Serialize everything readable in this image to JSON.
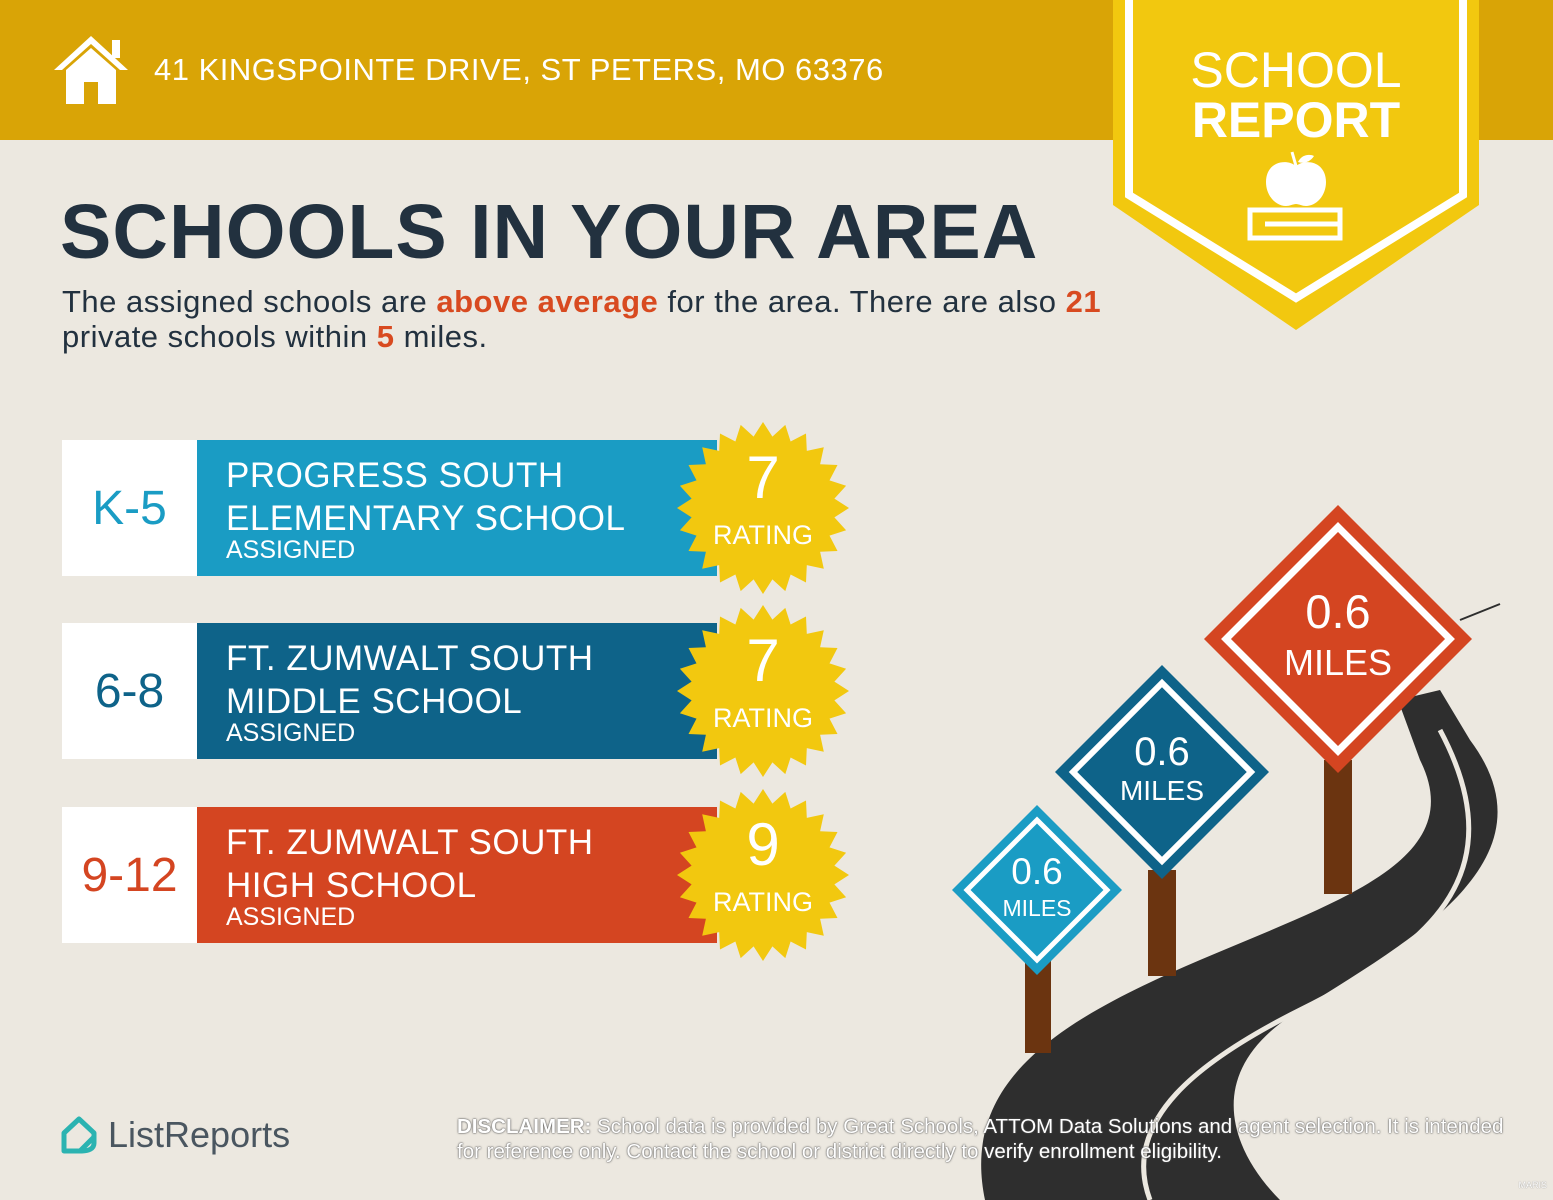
{
  "header": {
    "address": "41 KINGSPOINTE DRIVE, ST PETERS, MO 63376",
    "icon": "home-icon"
  },
  "badge": {
    "line1": "SCHOOL",
    "line2": "REPORT",
    "icon": "apple-on-book-icon"
  },
  "title": "SCHOOLS IN YOUR AREA",
  "subtitle": {
    "p1": "The assigned schools are ",
    "highlight1": "above average",
    "p2": " for the area. There are also ",
    "highlight2": "21",
    "p3": " private schools within ",
    "highlight3": "5",
    "p4": " miles."
  },
  "schools": [
    {
      "grade": "K-5",
      "name1": "PROGRESS SOUTH",
      "name2": "ELEMENTARY SCHOOL",
      "status": "ASSIGNED",
      "rating": "7",
      "rating_label": "RATING",
      "color": "#1A9CC4"
    },
    {
      "grade": "6-8",
      "name1": "FT. ZUMWALT SOUTH",
      "name2": "MIDDLE SCHOOL",
      "status": "ASSIGNED",
      "rating": "7",
      "rating_label": "RATING",
      "color": "#0E6389"
    },
    {
      "grade": "9-12",
      "name1": "FT. ZUMWALT SOUTH",
      "name2": "HIGH SCHOOL",
      "status": "ASSIGNED",
      "rating": "9",
      "rating_label": "RATING",
      "color": "#D44521"
    }
  ],
  "distances": [
    {
      "value": "0.6",
      "unit": "MILES",
      "color": "#1A9CC4"
    },
    {
      "value": "0.6",
      "unit": "MILES",
      "color": "#0E6389"
    },
    {
      "value": "0.6",
      "unit": "MILES",
      "color": "#D44521"
    }
  ],
  "footer": {
    "logo": "ListReports",
    "disclaimer_label": "DISCLAIMER:",
    "disclaimer": " School data is provided by Great Schools, ATTOM Data Solutions and agent selection. It is intended for reference only. Contact the school or district directly to verify enrollment eligibility.",
    "watermark": "MARIS"
  },
  "colors": {
    "header": "#D9A406",
    "badge": "#F2C80F",
    "background": "#ECE8E0",
    "text": "#22313F",
    "highlight": "#D84A20",
    "seal": "#F2C80F"
  }
}
